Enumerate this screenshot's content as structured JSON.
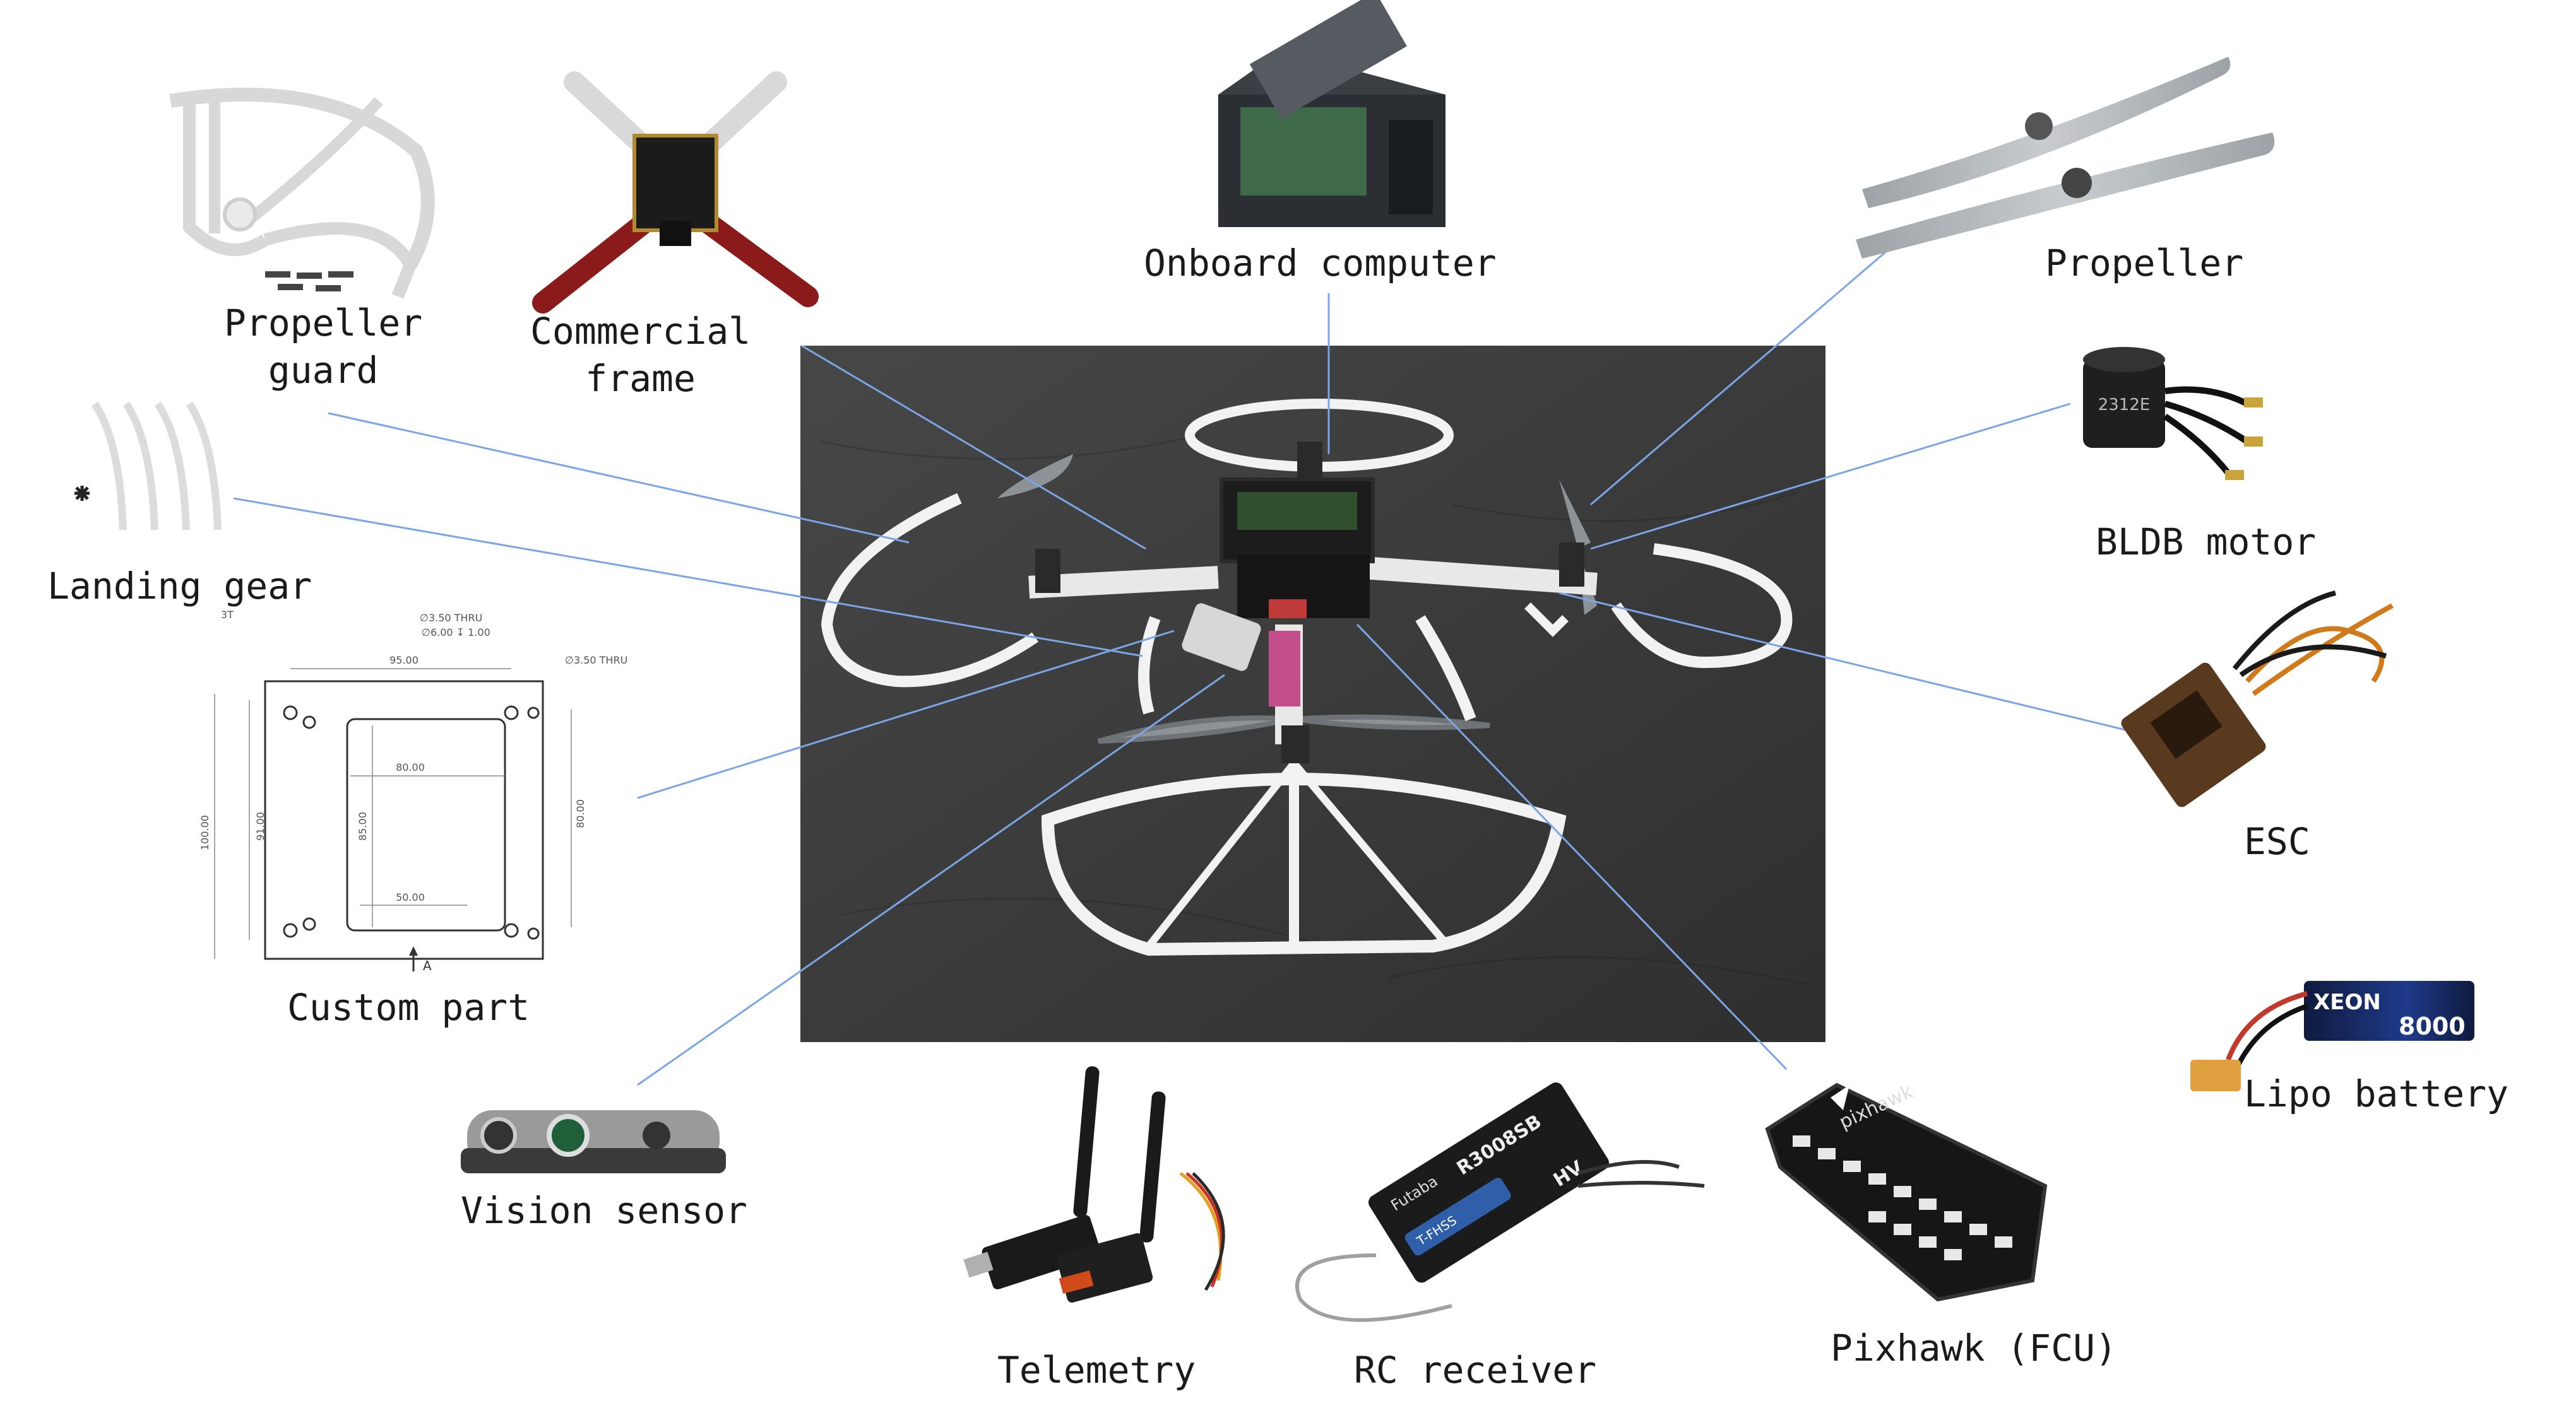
{
  "labels": {
    "propeller_guard": [
      "Propeller",
      "guard"
    ],
    "commercial_frame": [
      "Commercial",
      "frame"
    ],
    "onboard_computer": "Onboard computer",
    "propeller": "Propeller",
    "bldc_motor": "BLDB motor",
    "landing_gear": "Landing gear",
    "esc": "ESC",
    "custom_part": "Custom part",
    "lipo_battery": "Lipo battery",
    "vision_sensor": "Vision sensor",
    "telemetry": "Telemetry",
    "rc_receiver": "RC receiver",
    "pixhawk": "Pixhawk (FCU)"
  },
  "component_text": {
    "motor_marking": "2312E",
    "battery_brand": "XEON",
    "battery_capacity": "8000",
    "receiver_brand": "Futaba",
    "receiver_model": "R3008SB",
    "receiver_system": "T-FHSS",
    "receiver_mode": "HV",
    "fcu_brand": "pixhawk",
    "drawing_view_marker": "A",
    "drawing_title_mark": "3T",
    "drawing_hole_note_1": "∅3.50 THRU",
    "drawing_hole_note_2": "∅6.00 ↧ 1.00",
    "drawing_hole_note_3": "∅3.50 THRU",
    "drawing_dims": [
      "95.00",
      "80.00",
      "85.00",
      "50.00",
      "91.00",
      "100.00",
      "80.00"
    ]
  },
  "colors": {
    "leader_line": "#7aa6e6",
    "photo_bg": "#3d3d3d",
    "guard_white": "#f2f2f2",
    "frame_red": "#8b1a1a",
    "propeller_gray": "#b5b9bd",
    "battery_blue": "#1b2c6b"
  }
}
